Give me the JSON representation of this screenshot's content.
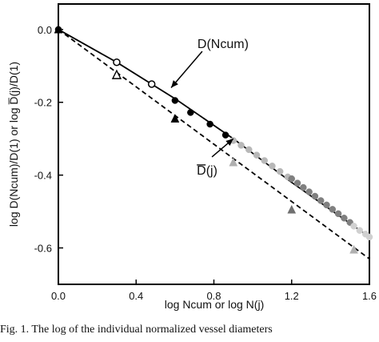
{
  "chart_data": {
    "type": "scatter",
    "x_axis": {
      "label": "log Ncum  or  log N(j)",
      "range": [
        0.0,
        1.6
      ],
      "ticks": [
        0.0,
        0.4,
        0.8,
        1.2,
        1.6
      ],
      "tick_labels": [
        "0.0",
        "0.4",
        "0.8",
        "1.2",
        "1.6"
      ]
    },
    "y_axis": {
      "label": "log D(Ncum)/D(1) or log D̅(j)/D(1)",
      "range": [
        -0.7,
        0.07
      ],
      "ticks": [
        0.0,
        -0.2,
        -0.4,
        -0.6
      ],
      "tick_labels": [
        "0.0",
        "-0.2",
        "-0.4",
        "-0.6"
      ]
    },
    "grid": false,
    "lines": [
      {
        "name": "D(Ncum)",
        "style": "solid",
        "x": [
          0.0,
          0.3,
          0.6,
          0.9,
          1.2,
          1.6
        ],
        "y": [
          0.0,
          -0.09,
          -0.19,
          -0.3,
          -0.42,
          -0.57
        ]
      },
      {
        "name": "D̅(j)",
        "style": "dashed",
        "x": [
          0.0,
          1.6
        ],
        "y": [
          0.0,
          -0.63
        ]
      }
    ],
    "series": [
      {
        "name": "open circles",
        "marker": "circle-open",
        "color": "#000000",
        "x": [
          0.3,
          0.48
        ],
        "y": [
          -0.09,
          -0.15
        ]
      },
      {
        "name": "filled circles",
        "marker": "circle",
        "color": "#000000",
        "x": [
          0.0,
          0.6,
          0.68,
          0.78,
          0.86
        ],
        "y": [
          0.0,
          -0.195,
          -0.228,
          -0.26,
          -0.29
        ]
      },
      {
        "name": "light gray circles",
        "marker": "circle",
        "color": "#b8b8b8",
        "x": [
          0.9,
          0.94,
          0.98,
          1.02,
          1.06,
          1.1,
          1.14,
          1.18
        ],
        "y": [
          -0.305,
          -0.318,
          -0.33,
          -0.345,
          -0.36,
          -0.375,
          -0.39,
          -0.405
        ]
      },
      {
        "name": "dark gray circles",
        "marker": "circle",
        "color": "#808080",
        "x": [
          1.2,
          1.23,
          1.26,
          1.29,
          1.32,
          1.35,
          1.38,
          1.41,
          1.44,
          1.47,
          1.5
        ],
        "y": [
          -0.41,
          -0.422,
          -0.434,
          -0.446,
          -0.458,
          -0.47,
          -0.482,
          -0.494,
          -0.506,
          -0.518,
          -0.53
        ]
      },
      {
        "name": "pale gray circles",
        "marker": "circle",
        "color": "#d0d0d0",
        "x": [
          1.52,
          1.55,
          1.58,
          1.6
        ],
        "y": [
          -0.54,
          -0.552,
          -0.562,
          -0.57
        ]
      },
      {
        "name": "open triangle",
        "marker": "triangle-open",
        "color": "#000000",
        "x": [
          0.3
        ],
        "y": [
          -0.125
        ]
      },
      {
        "name": "filled triangles",
        "marker": "triangle",
        "color": "#000000",
        "x": [
          0.0,
          0.6
        ],
        "y": [
          0.0,
          -0.245
        ]
      },
      {
        "name": "dark gray triangle",
        "marker": "triangle",
        "color": "#707070",
        "x": [
          1.2
        ],
        "y": [
          -0.495
        ]
      },
      {
        "name": "light gray triangles",
        "marker": "triangle",
        "color": "#b0b0b0",
        "x": [
          0.9,
          1.52
        ],
        "y": [
          -0.365,
          -0.605
        ]
      }
    ],
    "annotations": [
      {
        "text": "D(Ncum)",
        "pointer_from": [
          0.74,
          -0.06
        ],
        "pointer_to": [
          0.58,
          -0.16
        ]
      },
      {
        "text": "D(j)",
        "overbar": true,
        "pointer_from": [
          0.79,
          -0.35
        ],
        "pointer_to": [
          0.9,
          -0.3
        ]
      }
    ]
  },
  "caption": "Fig. 1. The log of the individual normalized vessel diameters"
}
